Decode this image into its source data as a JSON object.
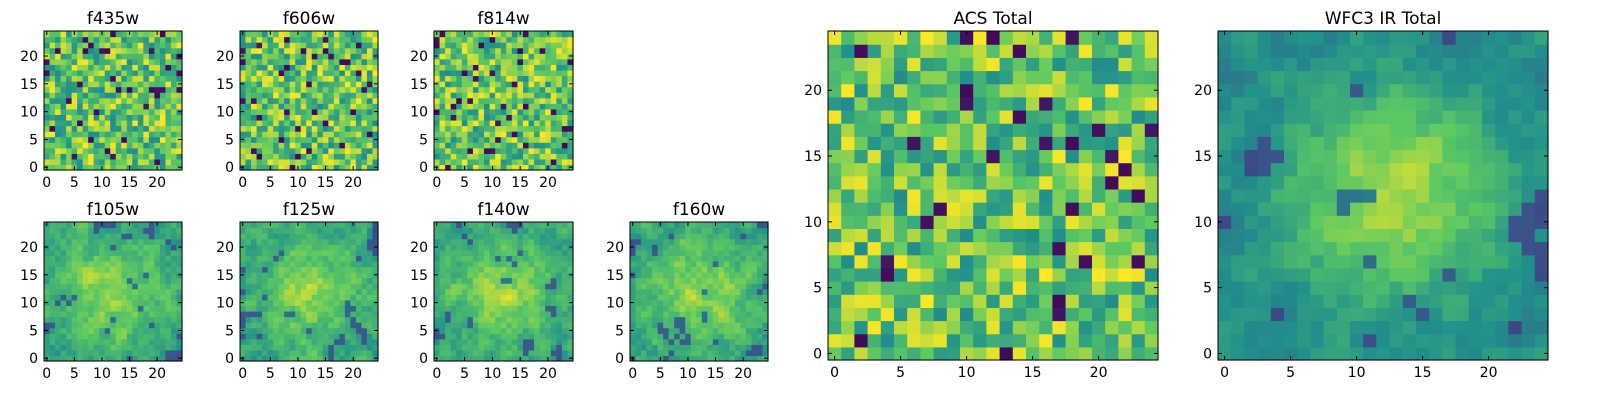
{
  "chart_data": [
    {
      "type": "heatmap",
      "title": "f435w",
      "xlim": [
        0,
        24
      ],
      "ylim": [
        0,
        24
      ],
      "xticks": [
        0,
        5,
        10,
        15,
        20
      ],
      "yticks": [
        0,
        5,
        10,
        15,
        20
      ],
      "grid": false,
      "colormap": "viridis",
      "pattern": "noise",
      "seed": 11
    },
    {
      "type": "heatmap",
      "title": "f606w",
      "xlim": [
        0,
        24
      ],
      "ylim": [
        0,
        24
      ],
      "xticks": [
        0,
        5,
        10,
        15,
        20
      ],
      "yticks": [
        0,
        5,
        10,
        15,
        20
      ],
      "grid": false,
      "colormap": "viridis",
      "pattern": "noise",
      "seed": 23
    },
    {
      "type": "heatmap",
      "title": "f814w",
      "xlim": [
        0,
        24
      ],
      "ylim": [
        0,
        24
      ],
      "xticks": [
        0,
        5,
        10,
        15,
        20
      ],
      "yticks": [
        0,
        5,
        10,
        15,
        20
      ],
      "grid": false,
      "colormap": "viridis",
      "pattern": "noise",
      "seed": 37
    },
    {
      "type": "heatmap",
      "title": "f105w",
      "xlim": [
        0,
        24
      ],
      "ylim": [
        0,
        24
      ],
      "xticks": [
        0,
        5,
        10,
        15,
        20
      ],
      "yticks": [
        0,
        5,
        10,
        15,
        20
      ],
      "grid": false,
      "colormap": "viridis",
      "pattern": "smooth",
      "seed": 41
    },
    {
      "type": "heatmap",
      "title": "f125w",
      "xlim": [
        0,
        24
      ],
      "ylim": [
        0,
        24
      ],
      "xticks": [
        0,
        5,
        10,
        15,
        20
      ],
      "yticks": [
        0,
        5,
        10,
        15,
        20
      ],
      "grid": false,
      "colormap": "viridis",
      "pattern": "smooth",
      "seed": 53
    },
    {
      "type": "heatmap",
      "title": "f140w",
      "xlim": [
        0,
        24
      ],
      "ylim": [
        0,
        24
      ],
      "xticks": [
        0,
        5,
        10,
        15,
        20
      ],
      "yticks": [
        0,
        5,
        10,
        15,
        20
      ],
      "grid": false,
      "colormap": "viridis",
      "pattern": "smooth",
      "seed": 67
    },
    {
      "type": "heatmap",
      "title": "f160w",
      "xlim": [
        0,
        24
      ],
      "ylim": [
        0,
        24
      ],
      "xticks": [
        0,
        5,
        10,
        15,
        20
      ],
      "yticks": [
        0,
        5,
        10,
        15,
        20
      ],
      "grid": false,
      "colormap": "viridis",
      "pattern": "smooth",
      "seed": 79
    },
    {
      "type": "heatmap",
      "title": "ACS Total",
      "xlim": [
        0,
        24
      ],
      "ylim": [
        0,
        24
      ],
      "xticks": [
        0,
        5,
        10,
        15,
        20
      ],
      "yticks": [
        0,
        5,
        10,
        15,
        20
      ],
      "grid": false,
      "colormap": "viridis",
      "pattern": "noise",
      "seed": 97
    },
    {
      "type": "heatmap",
      "title": "WFC3 IR Total",
      "xlim": [
        0,
        24
      ],
      "ylim": [
        0,
        24
      ],
      "xticks": [
        0,
        5,
        10,
        15,
        20
      ],
      "yticks": [
        0,
        5,
        10,
        15,
        20
      ],
      "grid": false,
      "colormap": "viridis",
      "pattern": "peak",
      "seed": 113
    }
  ],
  "colors": {
    "viridis_dark": "#440154",
    "viridis_mid": "#21918c",
    "viridis_light": "#fde725"
  }
}
